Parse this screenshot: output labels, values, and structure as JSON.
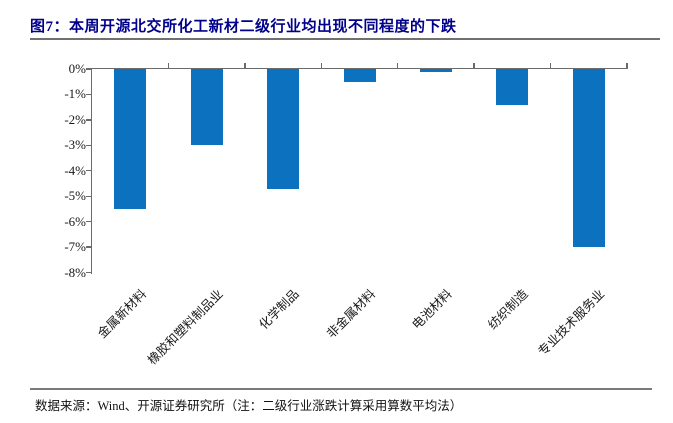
{
  "header": {
    "title": "图7：本周开源北交所化工新材二级行业均出现不同程度的下跌"
  },
  "chart_data": {
    "type": "bar",
    "categories": [
      "金属新材料",
      "橡胶和塑料制品业",
      "化学制品",
      "非金属材料",
      "电池材料",
      "纺织制造",
      "专业技术服务业"
    ],
    "values": [
      -5.5,
      -3.0,
      -4.7,
      -0.5,
      -0.1,
      -1.4,
      -7.0
    ],
    "unit": "%",
    "title": "",
    "xlabel": "",
    "ylabel": "",
    "ylim": [
      -8,
      0
    ],
    "ytick_labels": [
      "0%",
      "-1%",
      "-2%",
      "-3%",
      "-4%",
      "-5%",
      "-6%",
      "-7%",
      "-8%"
    ],
    "grid": false,
    "legend_position": "none",
    "bar_color": "#0c72bf",
    "axis_color": "#6b6b6b",
    "xtick_rotation_deg": 45
  },
  "footer": {
    "source_note": "数据来源：Wind、开源证券研究所（注：二级行业涨跌计算采用算数平均法）"
  },
  "colors": {
    "title_text": "#00008b",
    "rule_gray": "#707070"
  }
}
